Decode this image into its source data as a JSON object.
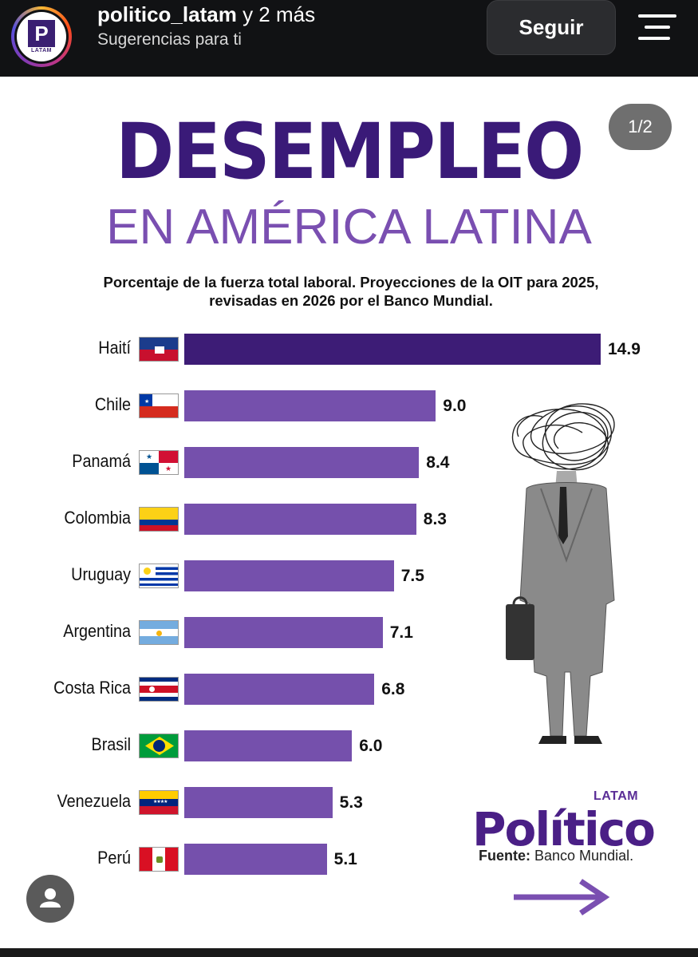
{
  "header": {
    "account_name": "politico_latam",
    "account_more": "y 2 más",
    "subtitle": "Sugerencias para ti",
    "follow_label": "Seguir",
    "avatar_letter": "P",
    "avatar_text": "LATAM"
  },
  "post": {
    "page_indicator": "1/2",
    "title": "DESEMPLEO",
    "subtitle": "EN AMÉRICA LATINA",
    "description_line1": "Porcentaje de la fuerza total laboral. Proyecciones de la OIT para 2025,",
    "description_line2": "revisadas en 2026 por el Banco Mundial.",
    "brand_name": "Político",
    "brand_tag": "LATAM",
    "source_label": "Fuente:",
    "source_value": "Banco Mundial."
  },
  "chart_data": {
    "type": "bar",
    "orientation": "horizontal",
    "categories": [
      "Haití",
      "Chile",
      "Panamá",
      "Colombia",
      "Uruguay",
      "Argentina",
      "Costa Rica",
      "Brasil",
      "Venezuela",
      "Perú"
    ],
    "values": [
      14.9,
      9.0,
      8.4,
      8.3,
      7.5,
      7.1,
      6.8,
      6.0,
      5.3,
      5.1
    ],
    "value_labels": [
      "14.9",
      "9.0",
      "8.4",
      "8.3",
      "7.5",
      "7.1",
      "6.8",
      "6.0",
      "5.3",
      "5.1"
    ],
    "bar_colors": [
      "#3d1c76",
      "#7550ac"
    ],
    "xlim": [
      0,
      14.9
    ]
  }
}
